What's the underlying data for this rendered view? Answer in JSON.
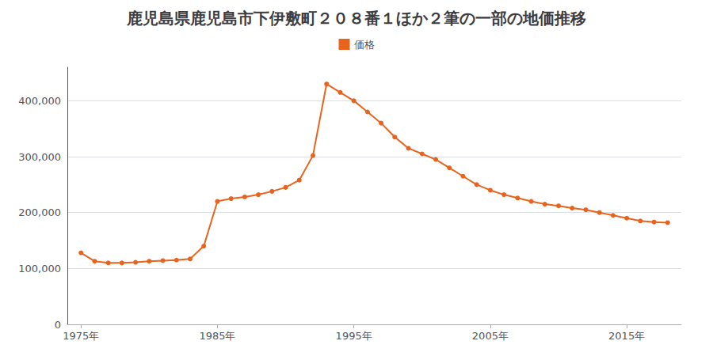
{
  "chart_data": {
    "type": "line",
    "title": "鹿児島県鹿児島市下伊敷町２０８番１ほか２筆の一部の地価推移",
    "x": [
      1975,
      1976,
      1977,
      1978,
      1979,
      1980,
      1981,
      1982,
      1983,
      1984,
      1985,
      1986,
      1987,
      1988,
      1989,
      1990,
      1991,
      1992,
      1993,
      1994,
      1995,
      1996,
      1997,
      1998,
      1999,
      2000,
      2001,
      2002,
      2003,
      2004,
      2005,
      2006,
      2007,
      2008,
      2009,
      2010,
      2011,
      2012,
      2013,
      2014,
      2015,
      2016,
      2017,
      2018
    ],
    "series": [
      {
        "name": "価格",
        "color": "#e8641e",
        "values": [
          128000,
          113000,
          110000,
          110000,
          111000,
          113000,
          114000,
          115000,
          117000,
          140000,
          220000,
          225000,
          228000,
          232000,
          238000,
          245000,
          258000,
          302000,
          430000,
          415000,
          400000,
          380000,
          360000,
          335000,
          315000,
          305000,
          295000,
          280000,
          265000,
          250000,
          240000,
          232000,
          226000,
          220000,
          215000,
          212000,
          208000,
          205000,
          200000,
          195000,
          190000,
          185000,
          183000,
          182000
        ]
      }
    ],
    "xlim": [
      1974,
      2019
    ],
    "xticks": [
      {
        "value": 1975,
        "label": "1975年"
      },
      {
        "value": 1985,
        "label": "1985年"
      },
      {
        "value": 1995,
        "label": "1995年"
      },
      {
        "value": 2005,
        "label": "2005年"
      },
      {
        "value": 2015,
        "label": "2015年"
      }
    ],
    "ylim": [
      0,
      460000
    ],
    "yticks": [
      0,
      {
        "value": 100000,
        "label": "100,000"
      },
      {
        "value": 200000,
        "label": "200,000"
      },
      {
        "value": 300000,
        "label": "300,000"
      },
      {
        "value": 400000,
        "label": "400,000"
      }
    ],
    "grid": true,
    "legend": "top",
    "marker": "circle"
  }
}
